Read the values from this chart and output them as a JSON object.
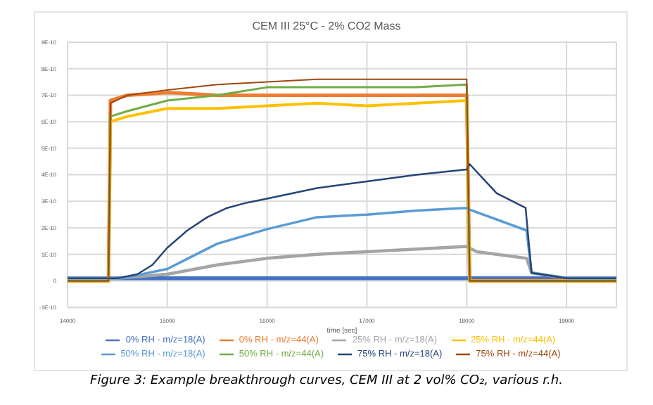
{
  "chart_data": {
    "type": "line",
    "title": "CEM III 25°C - 2% CO2 Mass",
    "xlabel": "time [sec]",
    "annotations": [
      "Figure 3: Example breakthrough curves, CEM III at 2 vol% CO₂, various r.h."
    ],
    "xlim": [
      14000,
      19500
    ],
    "xticks": [
      14000,
      15000,
      16000,
      17000,
      18000,
      19000
    ],
    "ylim": [
      -1e-10,
      9e-10
    ],
    "yticks": [
      {
        "value": -1e-10,
        "label": "-1E-10"
      },
      0,
      {
        "value": 1e-10,
        "label": "1E-10"
      },
      {
        "value": 2e-10,
        "label": "2E-10"
      },
      {
        "value": 3e-10,
        "label": "3E-10"
      },
      {
        "value": 4e-10,
        "label": "4E-10"
      },
      {
        "value": 5e-10,
        "label": "5E-10"
      },
      {
        "value": 6e-10,
        "label": "6E-10"
      },
      {
        "value": 7e-10,
        "label": "7E-10"
      },
      {
        "value": 8e-10,
        "label": "8E-10"
      },
      {
        "value": 9e-10,
        "label": "9E-10"
      }
    ],
    "grid": true,
    "legend": "bottom",
    "marker": "none",
    "line_style": "solid",
    "series": [
      {
        "name": "0% RH - m/z=18(A)",
        "color": "#4472c4",
        "x": [
          14000,
          19500
        ],
        "values": [
          1e-11,
          1e-11
        ]
      },
      {
        "name": "0% RH - m/z=44(A)",
        "color": "#ed7d31",
        "x": [
          14000,
          14410,
          14430,
          14600,
          15000,
          15500,
          16000,
          16500,
          17000,
          17500,
          18000,
          18030,
          19500
        ],
        "values": [
          0,
          0,
          6.8e-10,
          7e-10,
          7.1e-10,
          7e-10,
          7e-10,
          7e-10,
          7e-10,
          7e-10,
          7e-10,
          0,
          0
        ]
      },
      {
        "name": "25% RH - m/z=18(A)",
        "color": "#a5a5a5",
        "x": [
          14000,
          14500,
          15000,
          15500,
          16000,
          16500,
          17000,
          17500,
          18000,
          18100,
          18600,
          18650,
          19000,
          19500
        ],
        "values": [
          1e-11,
          1e-11,
          2.5e-11,
          6e-11,
          8.5e-11,
          1e-10,
          1.1e-10,
          1.2e-10,
          1.3e-10,
          1.1e-10,
          8.5e-11,
          3e-11,
          1e-11,
          1e-11
        ]
      },
      {
        "name": "25% RH - m/z=44(A)",
        "color": "#ffc000",
        "x": [
          14000,
          14410,
          14430,
          14600,
          15000,
          15500,
          16000,
          16500,
          17000,
          17500,
          18000,
          18030,
          19500
        ],
        "values": [
          0,
          0,
          6e-10,
          6.2e-10,
          6.5e-10,
          6.5e-10,
          6.6e-10,
          6.7e-10,
          6.6e-10,
          6.7e-10,
          6.8e-10,
          0,
          0
        ]
      },
      {
        "name": "50% RH - m/z=18(A)",
        "color": "#5b9bd5",
        "x": [
          14000,
          14550,
          15000,
          15500,
          16000,
          16500,
          17000,
          17500,
          18000,
          18020,
          18600,
          18650,
          19000,
          19500
        ],
        "values": [
          1e-11,
          1e-11,
          4.5e-11,
          1.4e-10,
          1.95e-10,
          2.4e-10,
          2.5e-10,
          2.65e-10,
          2.75e-10,
          2.7e-10,
          1.9e-10,
          3e-11,
          1e-11,
          1e-11
        ]
      },
      {
        "name": "50% RH - m/z=44(A)",
        "color": "#70ad47",
        "x": [
          14000,
          14410,
          14430,
          14600,
          15000,
          15500,
          16000,
          16500,
          17000,
          17500,
          18000,
          18030,
          19500
        ],
        "values": [
          0,
          0,
          6.2e-10,
          6.4e-10,
          6.8e-10,
          7e-10,
          7.3e-10,
          7.3e-10,
          7.3e-10,
          7.3e-10,
          7.4e-10,
          0,
          0
        ]
      },
      {
        "name": "75% RH - m/z=18(A)",
        "color": "#264478",
        "x": [
          14000,
          14500,
          14700,
          14850,
          15000,
          15200,
          15400,
          15600,
          15800,
          16000,
          16500,
          17000,
          17500,
          18000,
          18030,
          18300,
          18590,
          18650,
          19000,
          19500
        ],
        "values": [
          1e-11,
          1e-11,
          2.5e-11,
          6e-11,
          1.25e-10,
          1.9e-10,
          2.4e-10,
          2.75e-10,
          2.95e-10,
          3.1e-10,
          3.5e-10,
          3.75e-10,
          4e-10,
          4.2e-10,
          4.4e-10,
          3.3e-10,
          2.75e-10,
          3e-11,
          1e-11,
          1e-11
        ]
      },
      {
        "name": "75% RH - m/z=44(A)",
        "color": "#9e480e",
        "x": [
          14000,
          14410,
          14430,
          14600,
          15000,
          15500,
          16000,
          16500,
          17000,
          17500,
          18000,
          18030,
          19500
        ],
        "values": [
          0,
          0,
          6.7e-10,
          7e-10,
          7.2e-10,
          7.4e-10,
          7.5e-10,
          7.6e-10,
          7.6e-10,
          7.6e-10,
          7.6e-10,
          0,
          0
        ]
      }
    ]
  }
}
